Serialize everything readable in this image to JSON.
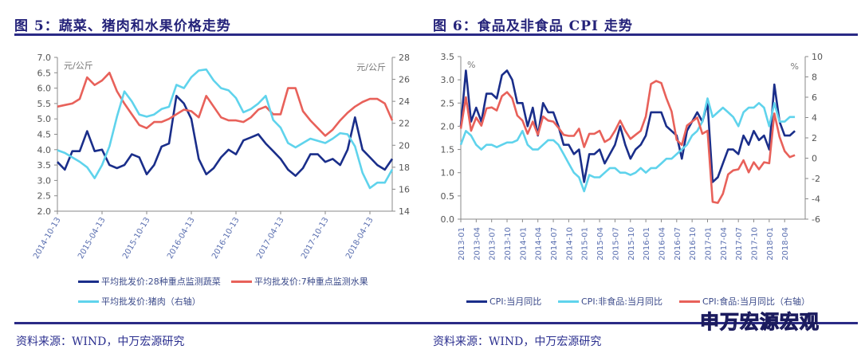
{
  "colors": {
    "dark_blue": "#1a2e8a",
    "red": "#e8615a",
    "light_blue": "#5fd3ec",
    "title": "#25237a"
  },
  "fig5": {
    "title": "图 5：蔬菜、猪肉和水果价格走势",
    "source": "资料来源：WIND，中万宏源研究"
  },
  "fig6": {
    "title": "图 6：食品及非食品 CPI 走势",
    "source": "资料来源：WIND，中万宏源研究"
  },
  "watermark": "申万宏源宏观",
  "chart_data": [
    {
      "type": "line",
      "title": "",
      "left_unit": "元/公斤",
      "right_unit": "元/公斤",
      "ylim_left": [
        2.0,
        7.0
      ],
      "ylim_right": [
        14,
        28
      ],
      "yticks_left": [
        "7.0",
        "6.5",
        "6.0",
        "5.5",
        "5.0",
        "4.5",
        "4.0",
        "3.5",
        "3.0",
        "2.5",
        "2.0"
      ],
      "yticks_right": [
        "28",
        "26",
        "24",
        "22",
        "20",
        "18",
        "16",
        "14"
      ],
      "xticks": [
        "2014-10-13",
        "2015-04-13",
        "2015-10-13",
        "2016-04-13",
        "2016-10-13",
        "2017-04-13",
        "2017-10-13",
        "2018-04-13"
      ],
      "x": [
        "2014-10",
        "2014-11",
        "2014-12",
        "2015-01",
        "2015-02",
        "2015-03",
        "2015-04",
        "2015-05",
        "2015-06",
        "2015-07",
        "2015-08",
        "2015-09",
        "2015-10",
        "2015-11",
        "2015-12",
        "2016-01",
        "2016-02",
        "2016-03",
        "2016-04",
        "2016-05",
        "2016-06",
        "2016-07",
        "2016-08",
        "2016-09",
        "2016-10",
        "2016-11",
        "2016-12",
        "2017-01",
        "2017-02",
        "2017-03",
        "2017-04",
        "2017-05",
        "2017-06",
        "2017-07",
        "2017-08",
        "2017-09",
        "2017-10",
        "2017-11",
        "2017-12",
        "2018-01",
        "2018-02",
        "2018-03",
        "2018-04",
        "2018-05",
        "2018-06",
        "2018-07"
      ],
      "grid": false,
      "legend": "bottom",
      "series": [
        {
          "name": "平均批发价:28种重点监测蔬菜",
          "axis": "left",
          "color": "#1a2e8a",
          "values": [
            3.6,
            3.35,
            3.95,
            3.95,
            4.6,
            3.95,
            4.0,
            3.5,
            3.4,
            3.5,
            3.85,
            3.75,
            3.2,
            3.5,
            4.1,
            4.2,
            5.75,
            5.5,
            5.0,
            3.7,
            3.2,
            3.4,
            3.75,
            4.0,
            3.85,
            4.3,
            4.4,
            4.5,
            4.2,
            3.95,
            3.7,
            3.35,
            3.15,
            3.4,
            3.85,
            3.85,
            3.6,
            3.7,
            3.5,
            4.0,
            5.05,
            4.0,
            3.75,
            3.5,
            3.35,
            3.7
          ]
        },
        {
          "name": "平均批发价:7种重点监测水果",
          "axis": "left",
          "color": "#e8615a",
          "values": [
            5.4,
            5.45,
            5.5,
            5.65,
            6.35,
            6.1,
            6.25,
            6.5,
            5.9,
            5.5,
            5.15,
            4.8,
            4.7,
            4.9,
            4.9,
            5.0,
            5.15,
            5.3,
            5.25,
            5.05,
            5.75,
            5.4,
            5.05,
            4.95,
            4.95,
            4.9,
            5.05,
            5.3,
            5.4,
            5.15,
            5.15,
            6.0,
            6.0,
            5.25,
            4.95,
            4.7,
            4.45,
            4.65,
            4.95,
            5.2,
            5.4,
            5.55,
            5.65,
            5.65,
            5.5,
            4.95
          ]
        },
        {
          "name": "平均批发价:猪肉（右轴）",
          "axis": "right",
          "color": "#5fd3ec",
          "values": [
            19.55,
            19.3,
            18.9,
            18.5,
            18.0,
            17.0,
            18.2,
            19.9,
            22.6,
            24.9,
            24.0,
            22.8,
            22.6,
            22.8,
            23.3,
            23.5,
            25.5,
            25.2,
            26.2,
            26.8,
            26.9,
            25.9,
            25.2,
            25.0,
            24.3,
            23.0,
            23.3,
            23.8,
            24.5,
            22.3,
            21.6,
            20.2,
            19.8,
            20.2,
            20.6,
            20.4,
            20.2,
            20.6,
            21.1,
            21.0,
            19.9,
            17.5,
            16.1,
            16.6,
            16.6,
            17.8
          ]
        }
      ]
    },
    {
      "type": "line",
      "title": "",
      "left_unit": "%",
      "right_unit": "%",
      "ylim_left": [
        0,
        3.5
      ],
      "ylim_right": [
        -6,
        10
      ],
      "yticks_left": [
        "3.5",
        "3.0",
        "2.5",
        "2.0",
        "1.5",
        "1.0",
        "0.5",
        "0.0"
      ],
      "yticks_right": [
        "10",
        "8",
        "6",
        "4",
        "2",
        "0",
        "-2",
        "-4",
        "-6"
      ],
      "xticks": [
        "2013-01",
        "2013-04",
        "2013-07",
        "2013-10",
        "2014-01",
        "2014-04",
        "2014-07",
        "2014-10",
        "2015-01",
        "2015-04",
        "2015-07",
        "2015-10",
        "2016-01",
        "2016-04",
        "2016-07",
        "2016-10",
        "2017-01",
        "2017-04",
        "2017-07",
        "2017-10",
        "2018-01",
        "2018-04"
      ],
      "x_start": "2013-01",
      "x_end": "2018-06",
      "grid": false,
      "legend": "bottom",
      "series": [
        {
          "name": "CPI:当月同比",
          "axis": "left",
          "color": "#1a2e8a",
          "values": [
            2.0,
            3.2,
            2.1,
            2.4,
            2.1,
            2.7,
            2.7,
            2.6,
            3.1,
            3.2,
            3.0,
            2.5,
            2.5,
            2.0,
            2.4,
            1.8,
            2.5,
            2.3,
            2.3,
            2.0,
            1.6,
            1.6,
            1.4,
            1.5,
            0.8,
            1.4,
            1.4,
            1.5,
            1.2,
            1.4,
            1.6,
            2.0,
            1.6,
            1.3,
            1.5,
            1.6,
            1.8,
            2.3,
            2.3,
            2.3,
            2.0,
            1.9,
            1.8,
            1.3,
            1.9,
            2.1,
            2.3,
            2.1,
            2.5,
            0.8,
            0.9,
            1.2,
            1.5,
            1.5,
            1.4,
            1.8,
            1.6,
            1.9,
            1.7,
            1.8,
            1.5,
            2.9,
            2.1,
            1.8,
            1.8,
            1.9
          ]
        },
        {
          "name": "CPI:非食品:当月同比",
          "axis": "left",
          "color": "#5fd3ec",
          "values": [
            1.6,
            1.9,
            1.8,
            1.6,
            1.5,
            1.6,
            1.6,
            1.55,
            1.6,
            1.65,
            1.65,
            1.7,
            1.9,
            1.6,
            1.5,
            1.5,
            1.6,
            1.7,
            1.7,
            1.6,
            1.4,
            1.2,
            1.0,
            0.9,
            0.6,
            0.95,
            0.9,
            0.9,
            1.0,
            1.1,
            1.1,
            1.0,
            1.0,
            0.95,
            1.0,
            1.1,
            1.0,
            1.1,
            1.1,
            1.2,
            1.3,
            1.3,
            1.4,
            1.5,
            1.6,
            1.8,
            1.9,
            2.1,
            2.6,
            2.2,
            2.3,
            2.4,
            2.3,
            2.2,
            2.0,
            2.3,
            2.4,
            2.4,
            2.5,
            2.4,
            2.0,
            2.5,
            2.1,
            2.1,
            2.2,
            2.2
          ]
        },
        {
          "name": "CPI:食品:当月同比（右轴）",
          "axis": "right",
          "color": "#e8615a",
          "values": [
            2.9,
            6.0,
            2.7,
            4.0,
            3.2,
            4.9,
            5.0,
            4.7,
            6.1,
            6.5,
            5.9,
            4.2,
            3.7,
            2.4,
            3.6,
            2.3,
            4.1,
            3.7,
            3.6,
            3.0,
            2.3,
            2.2,
            2.2,
            2.9,
            1.1,
            2.4,
            2.4,
            2.7,
            1.6,
            1.9,
            2.7,
            3.7,
            2.7,
            1.9,
            2.3,
            2.7,
            4.1,
            7.3,
            7.6,
            7.4,
            5.9,
            4.6,
            1.8,
            1.3,
            3.2,
            3.6,
            4.0,
            2.4,
            2.7,
            -4.3,
            -4.4,
            -3.5,
            -1.6,
            -1.2,
            -1.1,
            -0.2,
            -1.4,
            -0.4,
            -1.1,
            -0.4,
            -0.5,
            4.4,
            2.1,
            0.7,
            0.1,
            0.3
          ]
        }
      ]
    }
  ]
}
